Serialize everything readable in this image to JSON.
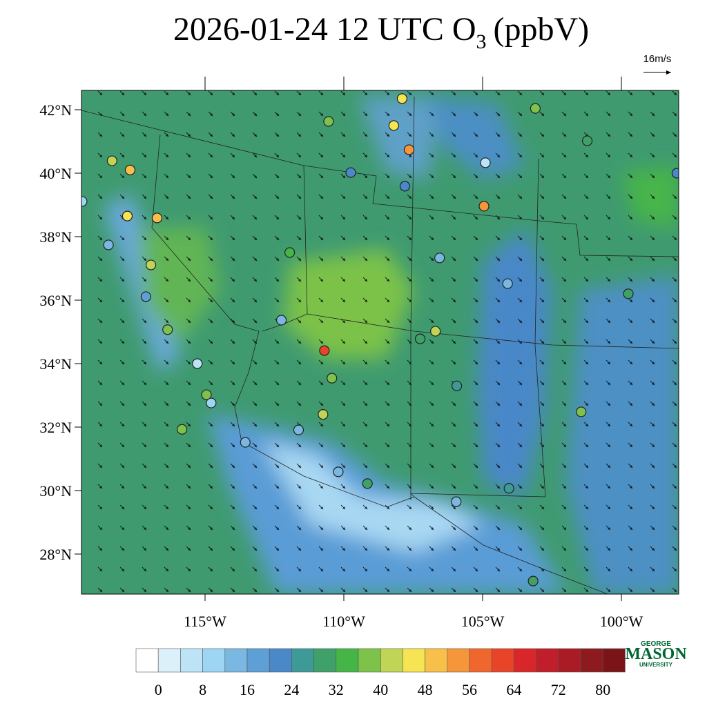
{
  "title": {
    "main": "2026-01-24 12 UTC O",
    "subscript": "3",
    "unit": "(ppbV)"
  },
  "wind_scale": "16m/s",
  "lat_ticks": [
    {
      "value": 42,
      "label": "42°N"
    },
    {
      "value": 40,
      "label": "40°N"
    },
    {
      "value": 38,
      "label": "38°N"
    },
    {
      "value": 36,
      "label": "36°N"
    },
    {
      "value": 34,
      "label": "34°N"
    },
    {
      "value": 32,
      "label": "32°N"
    },
    {
      "value": 30,
      "label": "30°N"
    },
    {
      "value": 28,
      "label": "28°N"
    }
  ],
  "lon_ticks": [
    {
      "value": -115,
      "label": "115°W"
    },
    {
      "value": -110,
      "label": "110°W"
    },
    {
      "value": -105,
      "label": "105°W"
    },
    {
      "value": -100,
      "label": "100°W"
    }
  ],
  "colorbar": {
    "levels": [
      0,
      4,
      8,
      12,
      16,
      20,
      24,
      28,
      32,
      36,
      40,
      44,
      48,
      52,
      56,
      60,
      64,
      68,
      72,
      76,
      80
    ],
    "ticks": [
      0,
      8,
      16,
      24,
      32,
      40,
      48,
      56,
      64,
      72,
      80
    ],
    "colors": [
      "#ffffff",
      "#dcf0fa",
      "#bde4f6",
      "#9dd5f2",
      "#7ab8e2",
      "#5e9fd6",
      "#4a88c8",
      "#3e9a96",
      "#3fa06a",
      "#46b548",
      "#7dc24a",
      "#c0d455",
      "#f7e453",
      "#f8c04a",
      "#f5963a",
      "#f0672d",
      "#e84428",
      "#d8262a",
      "#c01e2a",
      "#a91b25",
      "#8c1a1e",
      "#7a1418"
    ]
  },
  "logo": {
    "top": "GEORGE",
    "name": "MASON",
    "bottom": "UNIVERSITY"
  },
  "stations": [
    {
      "lon": -117.7,
      "lat": 40.1,
      "value": 48
    },
    {
      "lon": -118.35,
      "lat": 40.39,
      "value": 42
    },
    {
      "lon": -116.73,
      "lat": 38.59,
      "value": 48
    },
    {
      "lon": -110.7,
      "lat": 34.41,
      "value": 60
    },
    {
      "lon": -107.65,
      "lat": 40.74,
      "value": 52
    },
    {
      "lon": -104.95,
      "lat": 38.96,
      "value": 52
    },
    {
      "lon": -107.9,
      "lat": 42.35,
      "value": 44
    },
    {
      "lon": -108.2,
      "lat": 41.5,
      "value": 44
    },
    {
      "lon": -103.1,
      "lat": 42.04,
      "value": 38
    },
    {
      "lon": -104.9,
      "lat": 40.33,
      "value": 6
    },
    {
      "lon": -109.75,
      "lat": 40.02,
      "value": 22
    },
    {
      "lon": -107.8,
      "lat": 39.59,
      "value": 22
    },
    {
      "lon": -111.95,
      "lat": 37.5,
      "value": 34
    },
    {
      "lon": -112.25,
      "lat": 35.37,
      "value": 14
    },
    {
      "lon": -115.28,
      "lat": 34.0,
      "value": 6
    },
    {
      "lon": -114.78,
      "lat": 32.76,
      "value": 8
    },
    {
      "lon": -113.55,
      "lat": 31.52,
      "value": 14
    },
    {
      "lon": -111.63,
      "lat": 31.91,
      "value": 14
    },
    {
      "lon": -110.75,
      "lat": 32.4,
      "value": 42
    },
    {
      "lon": -110.43,
      "lat": 33.54,
      "value": 36
    },
    {
      "lon": -110.55,
      "lat": 41.63,
      "value": 36
    },
    {
      "lon": -109.15,
      "lat": 30.22,
      "value": 30
    },
    {
      "lon": -106.55,
      "lat": 37.33,
      "value": 12
    },
    {
      "lon": -104.1,
      "lat": 36.52,
      "value": 14
    },
    {
      "lon": -99.75,
      "lat": 36.2,
      "value": 30
    },
    {
      "lon": -101.45,
      "lat": 32.48,
      "value": 36
    },
    {
      "lon": -103.18,
      "lat": 27.15,
      "value": 28
    },
    {
      "lon": -98.0,
      "lat": 40.0,
      "value": 22
    },
    {
      "lon": -101.23,
      "lat": 41.02,
      "value": 30
    },
    {
      "lon": -119.43,
      "lat": 39.11,
      "value": 8
    },
    {
      "lon": -118.48,
      "lat": 37.74,
      "value": 14
    },
    {
      "lon": -117.13,
      "lat": 36.11,
      "value": 16
    },
    {
      "lon": -115.83,
      "lat": 31.93,
      "value": 38
    },
    {
      "lon": -114.95,
      "lat": 33.02,
      "value": 38
    },
    {
      "lon": -105.95,
      "lat": 29.65,
      "value": 14
    },
    {
      "lon": -104.05,
      "lat": 30.07,
      "value": 24
    },
    {
      "lon": -110.2,
      "lat": 30.59,
      "value": 12
    },
    {
      "lon": -105.93,
      "lat": 33.3,
      "value": 24
    },
    {
      "lon": -107.25,
      "lat": 34.78,
      "value": 30
    },
    {
      "lon": -106.7,
      "lat": 35.02,
      "value": 40
    },
    {
      "lon": -116.35,
      "lat": 35.07,
      "value": 38
    },
    {
      "lon": -117.8,
      "lat": 38.65,
      "value": 44
    },
    {
      "lon": -116.95,
      "lat": 37.11,
      "value": 42
    }
  ]
}
